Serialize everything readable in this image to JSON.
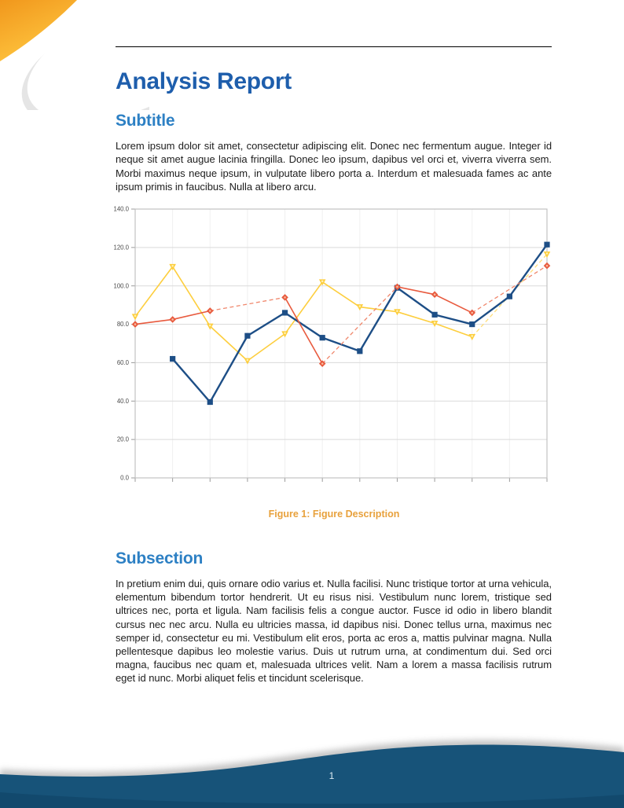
{
  "header": {
    "title": "Analysis Report"
  },
  "sections": [
    {
      "heading": "Subtitle",
      "body": "Lorem ipsum dolor sit amet, consectetur adipiscing elit.  Donec nec fermentum augue.  Integer id neque sit amet augue lacinia fringilla.  Donec leo ipsum, dapibus vel orci et, viverra viverra sem.  Morbi maximus neque ipsum, in vulputate libero porta a.  Interdum et malesuada fames ac ante ipsum primis in faucibus. Nulla at libero arcu."
    },
    {
      "heading": "Subsection",
      "body": "In pretium enim dui, quis ornare odio varius et.  Nulla facilisi.  Nunc tristique tortor at urna vehicula, elementum bibendum tortor hendrerit.  Ut eu risus nisi.  Vestibulum nunc lorem, tristique sed ultrices nec, porta et ligula.  Nam facilisis felis a congue auctor.  Fusce id odio in libero blandit cursus nec nec arcu.  Nulla eu ultricies massa, id dapibus nisi.  Donec tellus urna, maximus nec semper id, consectetur eu mi.  Vestibulum elit eros, porta ac eros a, mattis pulvinar magna.  Nulla pellentesque dapibus leo molestie varius.  Duis ut rutrum urna, at condimentum dui.  Sed orci magna, faucibus nec quam et, malesuada ultrices velit.  Nam a lorem a massa facilisis rutrum eget id nunc.  Morbi aliquet felis et tincidunt scelerisque."
    }
  ],
  "figure": {
    "caption_label": "Figure 1:",
    "caption_text": "Figure Description",
    "caption_color": "#E8A13C"
  },
  "footer": {
    "page_number": "1",
    "wave_color": "#175379"
  },
  "decoration": {
    "corner_gradient_start": "#F1971C",
    "corner_gradient_end": "#FFC841"
  },
  "colors": {
    "title_blue": "#1E5EAC",
    "heading_blue": "#2D80C4",
    "body_text": "#1d1d1d"
  },
  "chart_data": {
    "type": "line",
    "title": "",
    "xlabel": "",
    "ylabel": "",
    "x_count": 12,
    "x_tick_labels": [],
    "ylim": [
      0,
      140
    ],
    "y_tick_step": 20,
    "y_tick_labels": [
      "0.0",
      "20.0",
      "40.0",
      "60.0",
      "80.0",
      "100.0",
      "120.0",
      "140.0"
    ],
    "grid": true,
    "legend": "none",
    "note": "null values are missing points; gaps are bridged with dashed segments",
    "series": [
      {
        "name": "series-yellow",
        "color": "#FDCE3E",
        "dash_color": "#FFDE7A",
        "marker": "triangle-down",
        "marker_center": "#FFF0B0",
        "line_width": 1.6,
        "values": [
          84,
          110,
          79,
          61,
          75,
          102,
          89,
          86.5,
          80.5,
          73.5,
          null,
          116.5
        ]
      },
      {
        "name": "series-blue",
        "color": "#1D4E86",
        "dash_color": "#1D4E86",
        "marker": "square",
        "marker_center": null,
        "line_width": 2.4,
        "values": [
          null,
          62,
          39.5,
          74,
          86,
          73,
          66,
          99,
          85,
          80,
          94.5,
          121.5
        ]
      },
      {
        "name": "series-red",
        "color": "#E85A3E",
        "dash_color": "#F0876C",
        "marker": "diamond",
        "marker_center": "#F6BA9E",
        "line_width": 1.6,
        "values": [
          80,
          82.5,
          87,
          null,
          94,
          59.5,
          null,
          99.5,
          95.5,
          86,
          null,
          110.5
        ]
      }
    ]
  }
}
